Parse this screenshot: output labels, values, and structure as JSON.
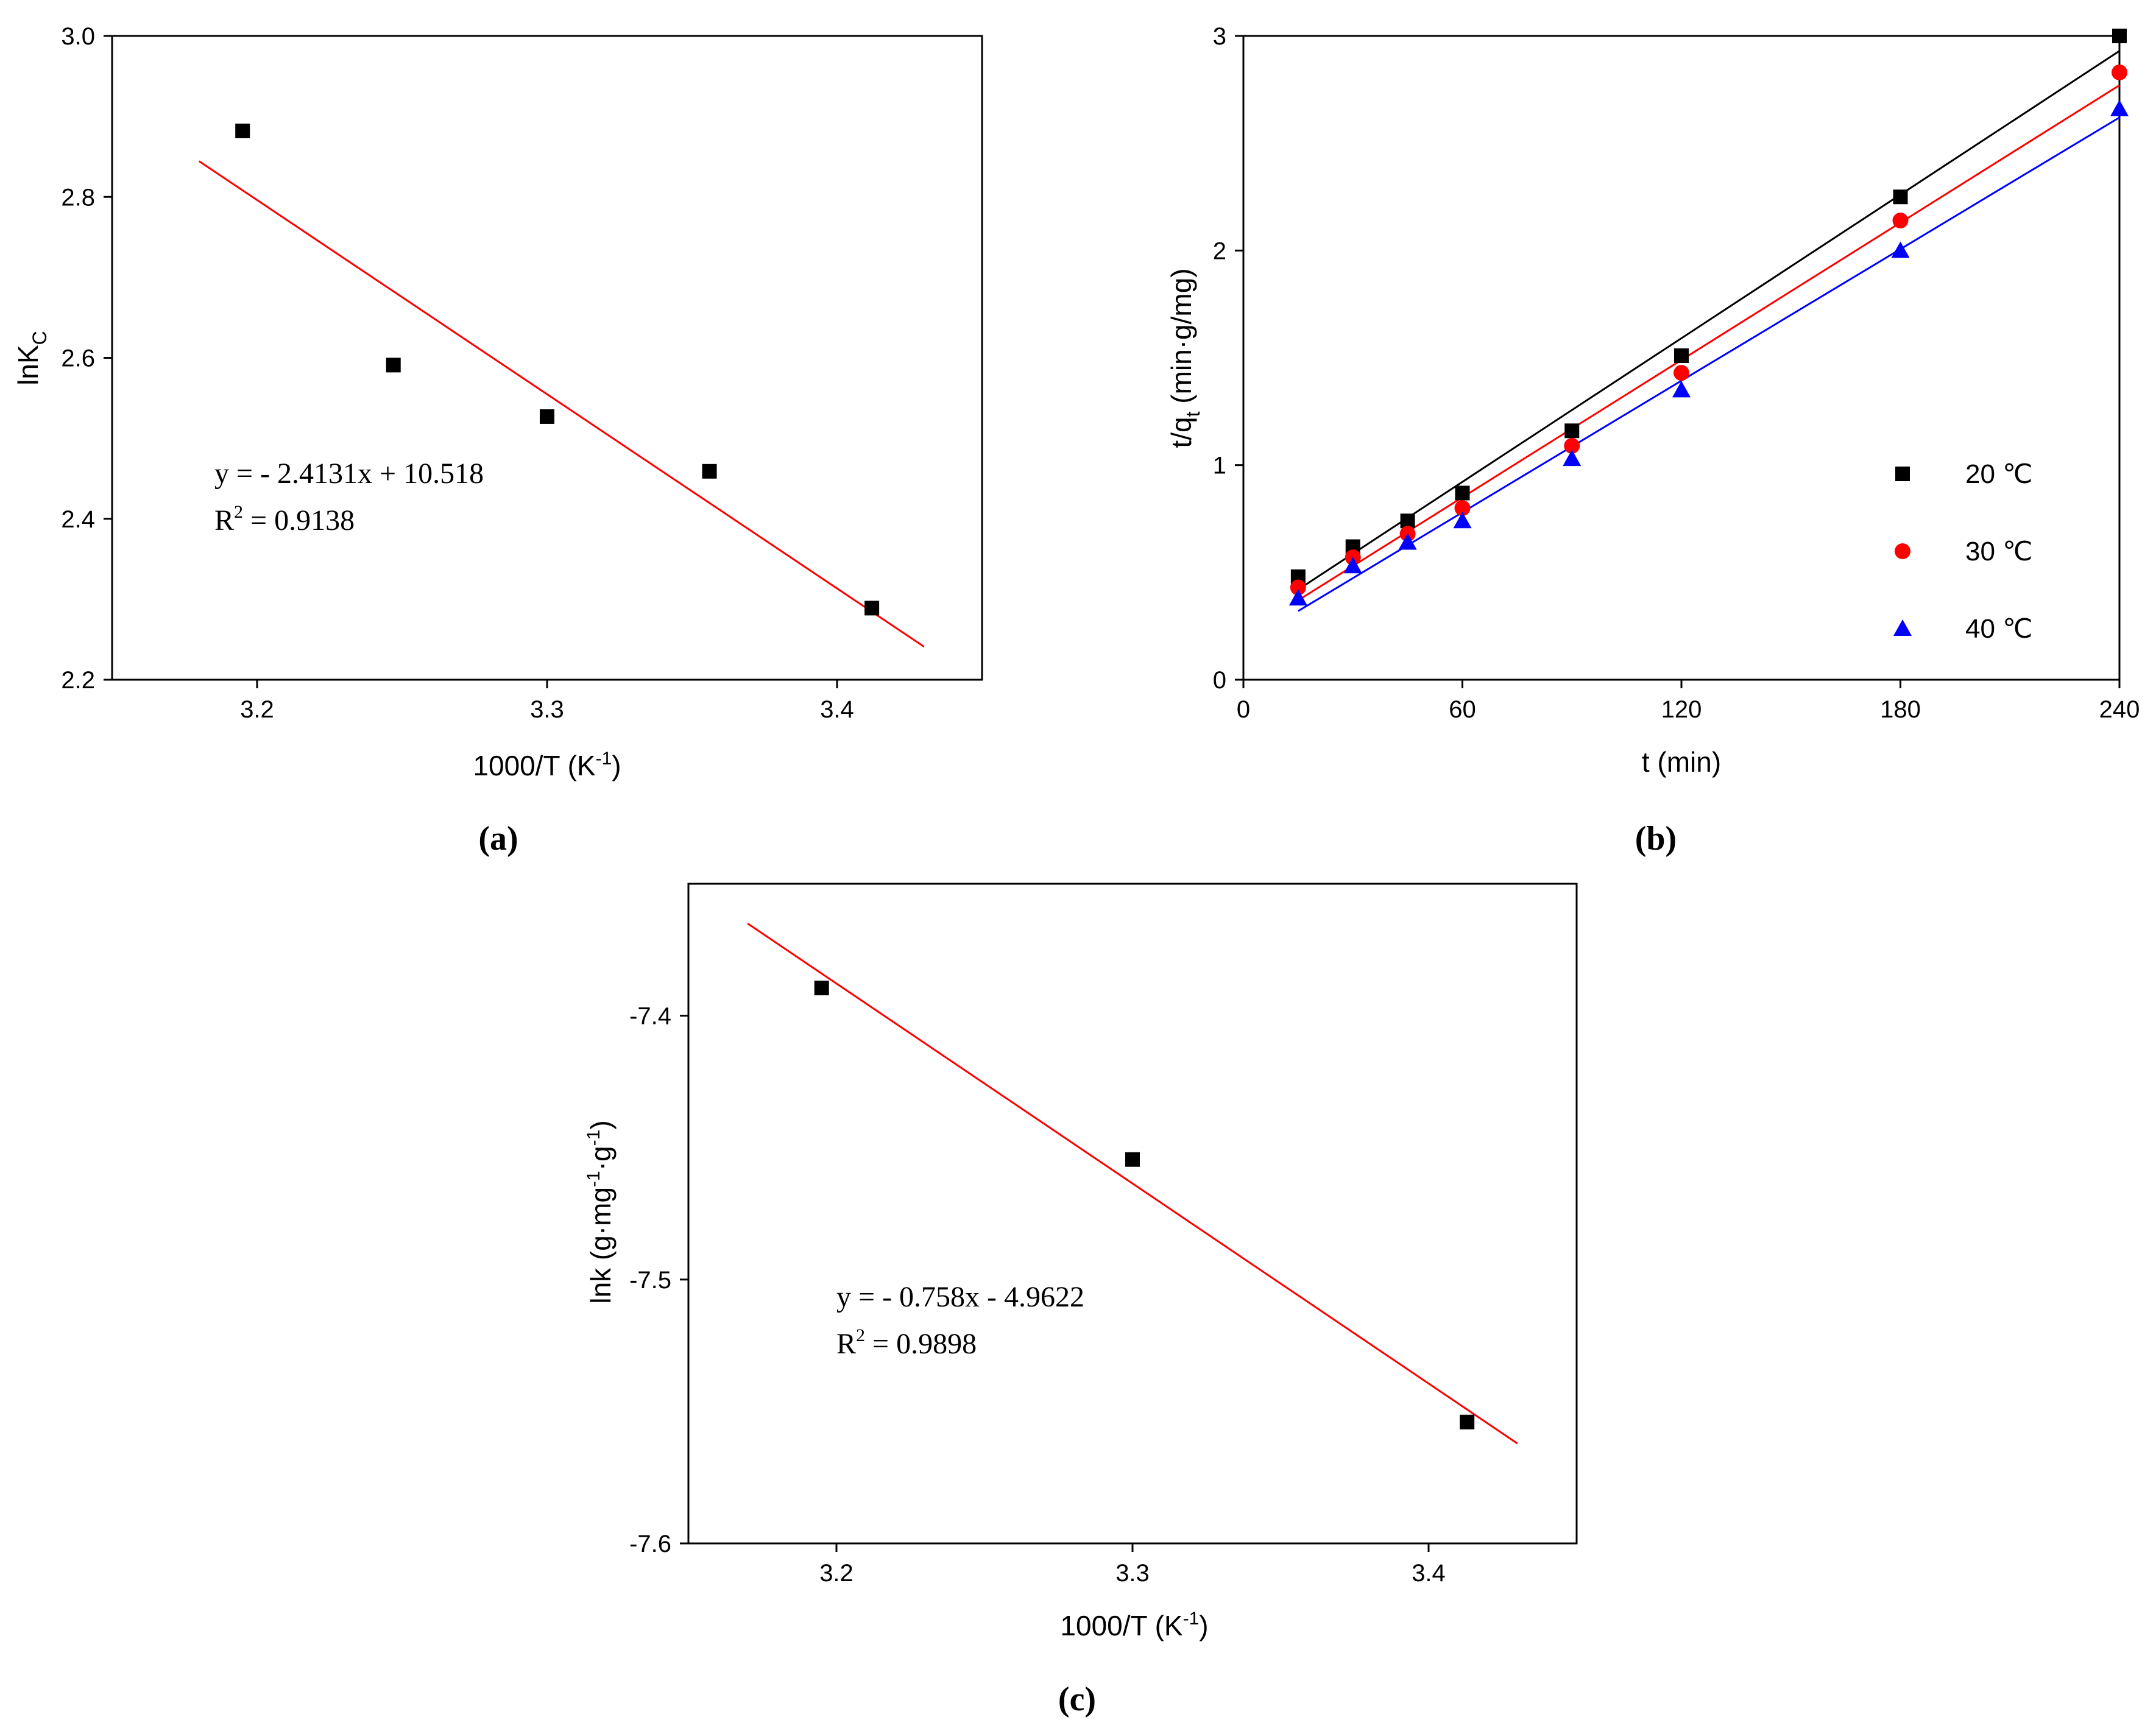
{
  "chart_data": [
    {
      "id": "a",
      "type": "scatter",
      "panel_label": "(a)",
      "xlabel": "1000/T (K",
      "xlabel_sup": "-1",
      "xlabel_end": ")",
      "ylabel": "lnK",
      "ylabel_sub": "C",
      "xlim": [
        3.15,
        3.45
      ],
      "ylim": [
        2.2,
        3.0
      ],
      "xticks": [
        "3.2",
        "3.3",
        "3.4"
      ],
      "yticks": [
        "2.2",
        "2.4",
        "2.6",
        "2.8",
        "3.0"
      ],
      "series": [
        {
          "name": "data",
          "marker": "square",
          "color": "#000000",
          "x": [
            3.195,
            3.247,
            3.3,
            3.356,
            3.412
          ],
          "y": [
            2.882,
            2.591,
            2.527,
            2.459,
            2.289
          ]
        }
      ],
      "fit": {
        "color": "#ff0000",
        "x": [
          3.18,
          3.43
        ]
      },
      "equation": "y = - 2.4131x + 10.518",
      "r2_prefix": "R",
      "r2_sup": "2",
      "r2_value": " = 0.9138",
      "slope": -2.4131,
      "intercept": 10.518
    },
    {
      "id": "b",
      "type": "scatter",
      "panel_label": "(b)",
      "xlabel": "t (min)",
      "ylabel": "t/q",
      "ylabel_sub": "t",
      "ylabel_end": " (min·g/mg)",
      "xlim": [
        0,
        240
      ],
      "ylim": [
        0,
        3
      ],
      "xticks": [
        "0",
        "60",
        "120",
        "180",
        "240"
      ],
      "yticks": [
        "0",
        "1",
        "2",
        "3"
      ],
      "legend_position": "center-right",
      "series": [
        {
          "name": "20 ℃",
          "marker": "square",
          "color": "#000000",
          "x": [
            15,
            30,
            45,
            60,
            90,
            120,
            180,
            240
          ],
          "y": [
            0.48,
            0.62,
            0.74,
            0.87,
            1.16,
            1.51,
            2.25,
            3.0
          ],
          "fit": {
            "x": [
              15,
              240
            ],
            "y": [
              0.42,
              2.93
            ]
          }
        },
        {
          "name": "30 ℃",
          "marker": "circle",
          "color": "#ff0000",
          "x": [
            15,
            30,
            45,
            60,
            90,
            120,
            180,
            240
          ],
          "y": [
            0.43,
            0.57,
            0.68,
            0.8,
            1.09,
            1.43,
            2.14,
            2.83
          ],
          "fit": {
            "x": [
              15,
              240
            ],
            "y": [
              0.37,
              2.77
            ]
          }
        },
        {
          "name": "40 ℃",
          "marker": "triangle",
          "color": "#0000ff",
          "x": [
            15,
            30,
            45,
            60,
            90,
            120,
            180,
            240
          ],
          "y": [
            0.38,
            0.53,
            0.64,
            0.74,
            1.03,
            1.35,
            2.0,
            2.66
          ],
          "fit": {
            "x": [
              15,
              240
            ],
            "y": [
              0.32,
              2.62
            ]
          }
        }
      ]
    },
    {
      "id": "c",
      "type": "scatter",
      "panel_label": "(c)",
      "xlabel": "1000/T (K",
      "xlabel_sup": "-1",
      "xlabel_end": ")",
      "ylabel": "lnk (g·mg",
      "ylabel_sup1": "-1",
      "ylabel_mid": "·g",
      "ylabel_sup2": "-1",
      "ylabel_end": ")",
      "xlim": [
        3.15,
        3.45
      ],
      "ylim": [
        -7.6,
        -7.35
      ],
      "xticks": [
        "3.2",
        "3.3",
        "3.4"
      ],
      "yticks": [
        "-7.6",
        "-7.5",
        "-7.4"
      ],
      "series": [
        {
          "name": "data",
          "marker": "square",
          "color": "#000000",
          "x": [
            3.195,
            3.3,
            3.413
          ],
          "y": [
            -7.3895,
            -7.4545,
            -7.554
          ]
        }
      ],
      "fit": {
        "color": "#ff0000",
        "x": [
          3.17,
          3.43
        ]
      },
      "equation": "y = - 0.758x - 4.9622",
      "r2_prefix": "R",
      "r2_sup": "2",
      "r2_value": " = 0.9898",
      "slope": -0.758,
      "intercept": -4.9622
    }
  ]
}
